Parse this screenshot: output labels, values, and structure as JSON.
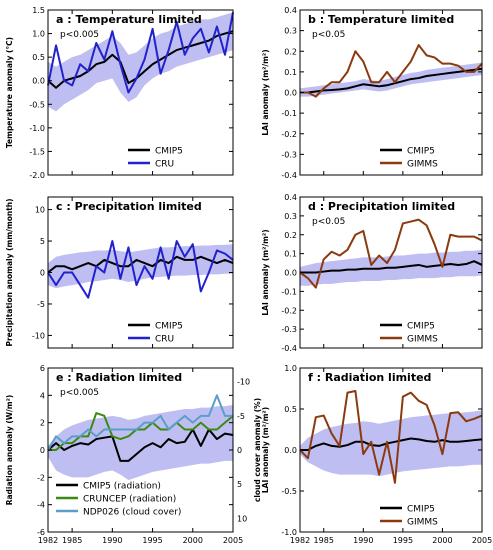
{
  "colors": {
    "band": "#b3b3f0",
    "CMIP5": "#000000",
    "CRU": "#2222cc",
    "GIMMS": "#8b3a0f",
    "CRUNCEP (radiation)": "#3d8a10",
    "NDP026 (cloud cover)": "#5b9ec9"
  },
  "chart_data": [
    {
      "id": "a",
      "type": "line",
      "title": "a : Temperature limited",
      "annotation": "p<0.005",
      "ylabel": "Temperature anomaly (°C)",
      "xlim": [
        1982,
        2005
      ],
      "ylim": [
        -2.0,
        1.5
      ],
      "yticks": [
        -2.0,
        -1.5,
        -1.0,
        -0.5,
        0.0,
        0.5,
        1.0,
        1.5
      ],
      "ytick_labels": [
        "-2.0",
        "-1.5",
        "-1.0",
        "-0.5",
        "0.0",
        "0.5",
        "1.0",
        "1.5"
      ],
      "xticks": [],
      "xtick_labels": [],
      "legend": [
        "CMIP5",
        "CRU"
      ],
      "x": [
        1982,
        1983,
        1984,
        1985,
        1986,
        1987,
        1988,
        1989,
        1990,
        1991,
        1992,
        1993,
        1994,
        1995,
        1996,
        1997,
        1998,
        1999,
        2000,
        2001,
        2002,
        2003,
        2004,
        2005
      ],
      "band": {
        "lower": [
          -0.55,
          -0.65,
          -0.5,
          -0.4,
          -0.3,
          -0.2,
          -0.05,
          0.0,
          0.05,
          -0.25,
          -0.45,
          -0.35,
          -0.1,
          0.05,
          0.15,
          0.2,
          0.3,
          0.35,
          0.4,
          0.45,
          0.5,
          0.55,
          0.6,
          0.65
        ],
        "upper": [
          0.4,
          0.3,
          0.4,
          0.5,
          0.55,
          0.65,
          0.75,
          0.85,
          0.95,
          0.8,
          0.55,
          0.6,
          0.75,
          0.9,
          1.0,
          1.05,
          1.15,
          1.2,
          1.25,
          1.3,
          1.3,
          1.35,
          1.4,
          1.45
        ]
      },
      "series": [
        {
          "name": "CMIP5",
          "values": [
            0.0,
            -0.15,
            0.0,
            0.05,
            0.1,
            0.2,
            0.35,
            0.4,
            0.55,
            0.4,
            -0.05,
            0.05,
            0.2,
            0.35,
            0.45,
            0.55,
            0.65,
            0.7,
            0.75,
            0.8,
            0.85,
            0.95,
            1.0,
            1.05
          ]
        },
        {
          "name": "CRU",
          "values": [
            -0.1,
            0.75,
            0.0,
            -0.1,
            0.35,
            0.2,
            0.8,
            0.45,
            1.05,
            0.35,
            -0.25,
            0.05,
            0.45,
            1.1,
            0.15,
            0.65,
            1.25,
            0.55,
            0.9,
            1.1,
            0.6,
            1.15,
            0.55,
            1.45
          ]
        }
      ]
    },
    {
      "id": "b",
      "type": "line",
      "title": "b : Temperature limited",
      "annotation": "p<0.05",
      "ylabel": "LAI anomaly (m²/m²)",
      "xlim": [
        1982,
        2005
      ],
      "ylim": [
        -0.4,
        0.4
      ],
      "yticks": [
        -0.4,
        -0.3,
        -0.2,
        -0.1,
        0.0,
        0.1,
        0.2,
        0.3,
        0.4
      ],
      "ytick_labels": [
        "-0.4",
        "-0.3",
        "-0.2",
        "-0.1",
        "0.0",
        "0.1",
        "0.2",
        "0.3",
        "0.4"
      ],
      "xticks": [],
      "xtick_labels": [],
      "legend": [
        "CMIP5",
        "GIMMS"
      ],
      "x": [
        1982,
        1983,
        1984,
        1985,
        1986,
        1987,
        1988,
        1989,
        1990,
        1991,
        1992,
        1993,
        1994,
        1995,
        1996,
        1997,
        1998,
        1999,
        2000,
        2001,
        2002,
        2003,
        2004,
        2005
      ],
      "band": {
        "lower": [
          -0.02,
          -0.02,
          -0.015,
          -0.01,
          -0.005,
          0.0,
          0.005,
          0.01,
          0.015,
          0.01,
          0.005,
          0.01,
          0.02,
          0.03,
          0.04,
          0.045,
          0.05,
          0.055,
          0.06,
          0.065,
          0.07,
          0.075,
          0.08,
          0.085
        ],
        "upper": [
          0.02,
          0.025,
          0.03,
          0.035,
          0.04,
          0.045,
          0.05,
          0.055,
          0.065,
          0.06,
          0.055,
          0.065,
          0.075,
          0.085,
          0.095,
          0.1,
          0.11,
          0.115,
          0.12,
          0.125,
          0.13,
          0.135,
          0.14,
          0.145
        ]
      },
      "series": [
        {
          "name": "CMIP5",
          "values": [
            0.0,
            0.0,
            0.005,
            0.01,
            0.012,
            0.015,
            0.02,
            0.03,
            0.04,
            0.035,
            0.03,
            0.035,
            0.045,
            0.055,
            0.065,
            0.07,
            0.08,
            0.085,
            0.09,
            0.095,
            0.1,
            0.105,
            0.11,
            0.115
          ]
        },
        {
          "name": "GIMMS",
          "values": [
            0.0,
            0.0,
            -0.02,
            0.02,
            0.05,
            0.05,
            0.1,
            0.2,
            0.15,
            0.05,
            0.05,
            0.1,
            0.05,
            0.1,
            0.15,
            0.23,
            0.18,
            0.17,
            0.14,
            0.14,
            0.13,
            0.1,
            0.1,
            0.14
          ]
        }
      ]
    },
    {
      "id": "c",
      "type": "line",
      "title": "c : Precipitation limited",
      "annotation": "",
      "ylabel": "Precipitation anomaly (mm/month)",
      "xlim": [
        1982,
        2005
      ],
      "ylim": [
        -12,
        12
      ],
      "yticks": [
        -10,
        -5,
        0,
        5,
        10
      ],
      "ytick_labels": [
        "-10",
        "-5",
        "0",
        "5",
        "10"
      ],
      "xticks": [],
      "xtick_labels": [],
      "legend": [
        "CMIP5",
        "CRU"
      ],
      "x": [
        1982,
        1983,
        1984,
        1985,
        1986,
        1987,
        1988,
        1989,
        1990,
        1991,
        1992,
        1993,
        1994,
        1995,
        1996,
        1997,
        1998,
        1999,
        2000,
        2001,
        2002,
        2003,
        2004,
        2005
      ],
      "band": {
        "lower": [
          -2.0,
          -2.5,
          -2.2,
          -2.0,
          -1.8,
          -1.5,
          -1.4,
          -1.2,
          -1.0,
          -1.2,
          -1.5,
          -1.3,
          -1.0,
          -0.8,
          -0.7,
          -0.6,
          -0.5,
          -0.5,
          -0.4,
          -0.4,
          -0.3,
          -0.3,
          -0.2,
          -0.2
        ],
        "upper": [
          1.5,
          2.5,
          2.8,
          3.0,
          3.2,
          3.3,
          3.5,
          3.5,
          3.6,
          3.4,
          3.2,
          3.4,
          3.6,
          3.8,
          4.0,
          4.0,
          4.1,
          4.2,
          4.2,
          4.3,
          4.3,
          4.4,
          4.4,
          4.5
        ]
      },
      "series": [
        {
          "name": "CMIP5",
          "values": [
            0.0,
            1.0,
            1.0,
            0.5,
            1.0,
            1.5,
            1.0,
            2.0,
            1.5,
            1.0,
            1.0,
            2.0,
            1.5,
            1.0,
            2.0,
            1.5,
            2.5,
            2.0,
            2.0,
            2.5,
            2.0,
            1.5,
            2.0,
            1.5
          ]
        },
        {
          "name": "CRU",
          "values": [
            0.0,
            -2.0,
            0.0,
            0.0,
            -2.0,
            -4.0,
            1.0,
            0.0,
            5.0,
            -1.0,
            4.0,
            -2.0,
            1.0,
            -1.0,
            4.0,
            -1.0,
            5.0,
            2.5,
            4.5,
            -3.0,
            0.0,
            3.5,
            3.0,
            2.0
          ]
        }
      ]
    },
    {
      "id": "d",
      "type": "line",
      "title": "d : Precipitation limited",
      "annotation": "p<0.05",
      "ylabel": "LAI anomaly (m²/m²)",
      "xlim": [
        1982,
        2005
      ],
      "ylim": [
        -0.4,
        0.4
      ],
      "yticks": [
        -0.4,
        -0.3,
        -0.2,
        -0.1,
        0.0,
        0.1,
        0.2,
        0.3,
        0.4
      ],
      "ytick_labels": [
        "-0.4",
        "-0.3",
        "-0.2",
        "-0.1",
        "0.0",
        "0.1",
        "0.2",
        "0.3",
        "0.4"
      ],
      "xticks": [],
      "xtick_labels": [],
      "legend": [
        "CMIP5",
        "GIMMS"
      ],
      "x": [
        1982,
        1983,
        1984,
        1985,
        1986,
        1987,
        1988,
        1989,
        1990,
        1991,
        1992,
        1993,
        1994,
        1995,
        1996,
        1997,
        1998,
        1999,
        2000,
        2001,
        2002,
        2003,
        2004,
        2005
      ],
      "band": {
        "lower": [
          -0.07,
          -0.07,
          -0.065,
          -0.06,
          -0.06,
          -0.055,
          -0.05,
          -0.05,
          -0.045,
          -0.045,
          -0.045,
          -0.04,
          -0.04,
          -0.035,
          -0.035,
          -0.03,
          -0.03,
          -0.03,
          -0.025,
          -0.025,
          -0.02,
          -0.02,
          -0.02,
          -0.015
        ],
        "upper": [
          0.03,
          0.04,
          0.05,
          0.055,
          0.06,
          0.065,
          0.07,
          0.075,
          0.08,
          0.08,
          0.08,
          0.085,
          0.09,
          0.09,
          0.095,
          0.1,
          0.1,
          0.105,
          0.105,
          0.11,
          0.11,
          0.115,
          0.115,
          0.12
        ]
      },
      "series": [
        {
          "name": "CMIP5",
          "values": [
            0.0,
            0.0,
            0.0,
            0.005,
            0.01,
            0.01,
            0.015,
            0.015,
            0.02,
            0.02,
            0.02,
            0.025,
            0.025,
            0.03,
            0.035,
            0.04,
            0.03,
            0.035,
            0.04,
            0.045,
            0.04,
            0.045,
            0.06,
            0.04
          ]
        },
        {
          "name": "GIMMS",
          "values": [
            0.0,
            -0.03,
            -0.08,
            0.07,
            0.11,
            0.09,
            0.12,
            0.2,
            0.22,
            0.04,
            0.09,
            0.05,
            0.12,
            0.26,
            0.27,
            0.28,
            0.25,
            0.15,
            0.03,
            0.2,
            0.19,
            0.19,
            0.19,
            0.17
          ]
        }
      ]
    },
    {
      "id": "e",
      "type": "line",
      "title": "e : Radiation limited",
      "annotation": "p<0.005",
      "ylabel": "Radiation anomaly (W/m²)",
      "y2label": "cloud cover anomaly (%)",
      "xlim": [
        1982,
        2005
      ],
      "ylim": [
        -6,
        6
      ],
      "yticks": [
        -6,
        -4,
        -2,
        0,
        2,
        4,
        6
      ],
      "ytick_labels": [
        "-6",
        "-4",
        "-2",
        "0",
        "2",
        "4",
        "6"
      ],
      "y2lim": [
        12,
        -12
      ],
      "y2ticks": [
        10,
        5,
        0,
        -5,
        -10
      ],
      "y2tick_labels": [
        "10",
        "5",
        "0",
        "-5",
        "-10"
      ],
      "xticks": [
        1982,
        1985,
        1990,
        1995,
        2000,
        2005
      ],
      "xtick_labels": [
        "1982",
        "1985",
        "1990",
        "1995",
        "2000",
        "2005"
      ],
      "legend": [
        "CMIP5 (radiation)",
        "CRUNCEP (radiation)",
        "NDP026 (cloud cover)"
      ],
      "x": [
        1982,
        1983,
        1984,
        1985,
        1986,
        1987,
        1988,
        1989,
        1990,
        1991,
        1992,
        1993,
        1994,
        1995,
        1996,
        1997,
        1998,
        1999,
        2000,
        2001,
        2002,
        2003,
        2004,
        2005
      ],
      "band": {
        "lower": [
          -0.5,
          -1.5,
          -1.8,
          -2.0,
          -2.0,
          -2.0,
          -1.8,
          -1.6,
          -1.5,
          -1.8,
          -2.2,
          -2.0,
          -1.8,
          -1.6,
          -1.5,
          -1.4,
          -1.3,
          -1.2,
          -1.1,
          -1.0,
          -1.0,
          -0.9,
          -0.8,
          -0.8
        ],
        "upper": [
          0.3,
          1.0,
          1.5,
          1.8,
          2.0,
          2.2,
          2.3,
          2.4,
          2.5,
          2.4,
          2.2,
          2.3,
          2.5,
          2.6,
          2.7,
          2.8,
          2.9,
          3.0,
          3.0,
          3.1,
          3.1,
          3.2,
          3.2,
          3.3
        ]
      },
      "series": [
        {
          "name": "CMIP5 (radiation)",
          "values": [
            0.0,
            0.5,
            0.0,
            0.3,
            0.5,
            0.4,
            0.8,
            0.9,
            1.0,
            -0.8,
            -0.8,
            -0.3,
            0.2,
            0.5,
            0.2,
            0.8,
            0.5,
            0.6,
            1.5,
            0.3,
            1.5,
            0.8,
            1.2,
            1.1
          ]
        },
        {
          "name": "CRUNCEP (radiation)",
          "values": [
            0.0,
            0.0,
            0.5,
            0.5,
            1.0,
            1.0,
            2.7,
            2.5,
            1.0,
            0.8,
            1.0,
            1.5,
            1.5,
            2.0,
            1.5,
            1.5,
            2.0,
            1.5,
            1.5,
            2.0,
            1.5,
            1.5,
            2.0,
            2.5
          ]
        },
        {
          "name": "NDP026 (cloud cover)",
          "values": [
            0.0,
            1.0,
            0.5,
            1.0,
            1.0,
            1.5,
            1.0,
            1.5,
            1.5,
            1.5,
            1.5,
            1.5,
            2.0,
            2.0,
            2.5,
            1.5,
            2.0,
            2.5,
            2.0,
            2.5,
            2.5,
            4.0,
            2.5,
            2.5
          ]
        }
      ]
    },
    {
      "id": "f",
      "type": "line",
      "title": "f : Radiation limited",
      "annotation": "",
      "ylabel": "LAI anomaly (m²/m²)",
      "xlim": [
        1982,
        2005
      ],
      "ylim": [
        -1.0,
        1.0
      ],
      "yticks": [
        -1.0,
        -0.5,
        0.0,
        0.5,
        1.0
      ],
      "ytick_labels": [
        "-1.0",
        "-0.5",
        "0.0",
        "0.5",
        "1.0"
      ],
      "xticks": [
        1982,
        1985,
        1990,
        1995,
        2000,
        2005
      ],
      "xtick_labels": [
        "1982",
        "1985",
        "1990",
        "1995",
        "2000",
        "2005"
      ],
      "legend": [
        "CMIP5",
        "GIMMS"
      ],
      "x": [
        1982,
        1983,
        1984,
        1985,
        1986,
        1987,
        1988,
        1989,
        1990,
        1991,
        1992,
        1993,
        1994,
        1995,
        1996,
        1997,
        1998,
        1999,
        2000,
        2001,
        2002,
        2003,
        2004,
        2005
      ],
      "band": {
        "lower": [
          -0.05,
          -0.15,
          -0.2,
          -0.25,
          -0.28,
          -0.3,
          -0.3,
          -0.3,
          -0.3,
          -0.3,
          -0.32,
          -0.3,
          -0.28,
          -0.26,
          -0.25,
          -0.24,
          -0.23,
          -0.22,
          -0.21,
          -0.2,
          -0.2,
          -0.19,
          -0.18,
          -0.18
        ],
        "upper": [
          0.05,
          0.15,
          0.2,
          0.25,
          0.28,
          0.3,
          0.32,
          0.33,
          0.35,
          0.34,
          0.32,
          0.34,
          0.36,
          0.38,
          0.4,
          0.41,
          0.42,
          0.43,
          0.44,
          0.45,
          0.45,
          0.46,
          0.47,
          0.48
        ]
      },
      "series": [
        {
          "name": "CMIP5",
          "values": [
            0.0,
            0.0,
            0.05,
            0.08,
            0.05,
            0.04,
            0.06,
            0.1,
            0.1,
            0.06,
            0.05,
            0.08,
            0.1,
            0.12,
            0.14,
            0.13,
            0.11,
            0.1,
            0.12,
            0.1,
            0.1,
            0.11,
            0.12,
            0.13
          ]
        },
        {
          "name": "GIMMS",
          "values": [
            0.0,
            -0.1,
            0.4,
            0.42,
            0.2,
            0.05,
            0.7,
            0.72,
            -0.05,
            0.1,
            -0.3,
            0.1,
            -0.4,
            0.65,
            0.7,
            0.6,
            0.55,
            0.3,
            -0.05,
            0.45,
            0.46,
            0.35,
            0.38,
            0.42
          ]
        }
      ]
    }
  ]
}
